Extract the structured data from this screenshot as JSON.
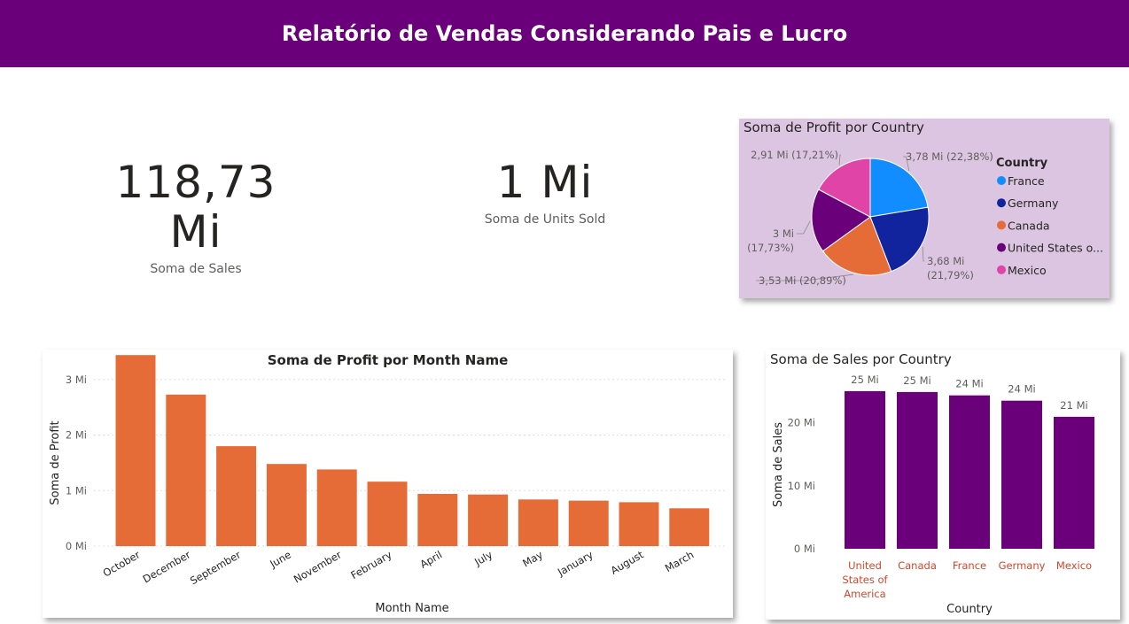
{
  "header": {
    "title": "Relatório de Vendas Considerando Pais e Lucro"
  },
  "kpis": {
    "sales": {
      "value": "118,73 Mi",
      "label": "Soma de Sales"
    },
    "units": {
      "value": "1 Mi",
      "label": "Soma de Units Sold"
    }
  },
  "colors": {
    "header_bg": "#6a007a",
    "pie_card_bg": "#dcc5e1",
    "month_bars": "#e66c37",
    "country_bars": "#6a007a",
    "country_axis_labels": "#d64529"
  },
  "chart_data": [
    {
      "id": "pie",
      "type": "pie",
      "title": "Soma de Profit por Country",
      "legend_title": "Country",
      "legend_position": "right",
      "slices": [
        {
          "name": "France",
          "legend_label": "France",
          "value": 3.78,
          "pct": 22.38,
          "label": "3,78 Mi (22,38%)",
          "color": "#118dff"
        },
        {
          "name": "Germany",
          "legend_label": "Germany",
          "value": 3.68,
          "pct": 21.79,
          "label": "3,68 Mi (21,79%)",
          "color": "#12239e"
        },
        {
          "name": "Canada",
          "legend_label": "Canada",
          "value": 3.53,
          "pct": 20.89,
          "label": "3,53 Mi (20,89%)",
          "color": "#e66c37"
        },
        {
          "name": "United States of America",
          "legend_label": "United States o...",
          "value": 3.0,
          "pct": 17.73,
          "label": "3 Mi (17,73%)",
          "color": "#6b007b"
        },
        {
          "name": "Mexico",
          "legend_label": "Mexico",
          "value": 2.91,
          "pct": 17.21,
          "label": "2,91 Mi (17,21%)",
          "color": "#e044a7"
        }
      ]
    },
    {
      "id": "month",
      "type": "bar",
      "title": "Soma de Profit por Month Name",
      "xlabel": "Month Name",
      "ylabel": "Soma de Profit",
      "unit": "Mi",
      "ylim": [
        0,
        3.3
      ],
      "yticks": [
        0,
        1,
        2,
        3
      ],
      "ytick_labels": [
        "0 Mi",
        "1 Mi",
        "2 Mi",
        "3 Mi"
      ],
      "grid": true,
      "categories": [
        "October",
        "December",
        "September",
        "June",
        "November",
        "February",
        "April",
        "July",
        "May",
        "January",
        "August",
        "March"
      ],
      "values": [
        3.44,
        2.73,
        1.8,
        1.48,
        1.38,
        1.16,
        0.94,
        0.93,
        0.84,
        0.82,
        0.79,
        0.68
      ]
    },
    {
      "id": "country",
      "type": "bar",
      "title": "Soma de Sales por Country",
      "xlabel": "Country",
      "ylabel": "Soma de Sales",
      "unit": "Mi",
      "ylim": [
        0,
        26
      ],
      "yticks": [
        0,
        10,
        20
      ],
      "ytick_labels": [
        "0 Mi",
        "10 Mi",
        "20 Mi"
      ],
      "grid": false,
      "categories": [
        "United States of America",
        "Canada",
        "France",
        "Germany",
        "Mexico"
      ],
      "values": [
        25.03,
        24.89,
        24.35,
        23.51,
        20.95
      ],
      "data_labels": [
        "25 Mi",
        "25 Mi",
        "24 Mi",
        "24 Mi",
        "21 Mi"
      ]
    }
  ]
}
